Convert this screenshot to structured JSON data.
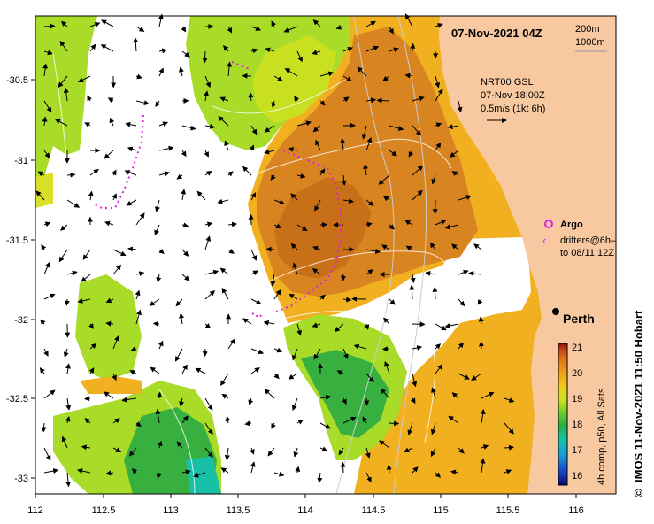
{
  "header": {
    "datetime": "07-Nov-2021 04Z",
    "depth_200": "200m",
    "depth_1000": "1000m"
  },
  "currents_note": {
    "line1": "NRT00 GSL",
    "line2": "07-Nov 18:00Z",
    "line3": "0.5m/s (1kt 6h)"
  },
  "legend": {
    "argo": "Argo",
    "drifters_line1": "drifters@6h–",
    "drifters_line2": "to 08/11 12Z"
  },
  "city": {
    "name": "Perth",
    "lon": 115.86,
    "lat": -31.95
  },
  "axes": {
    "x_ticks": [
      "112",
      "112.5",
      "113",
      "113.5",
      "114",
      "114.5",
      "115",
      "115.5",
      "116"
    ],
    "y_ticks": [
      "-30.5",
      "-31",
      "-31.5",
      "-32",
      "-32.5",
      "-33"
    ],
    "xlim": [
      112,
      116.3
    ],
    "ylim": [
      -33.1,
      -30.1
    ]
  },
  "colorbar": {
    "ticks": [
      "21",
      "20",
      "19",
      "18",
      "17",
      "16"
    ],
    "range": [
      15.5,
      21
    ],
    "label": "4h comp, p50, All Sats",
    "colors": [
      "#0a0a6e",
      "#1848c8",
      "#1aa0d8",
      "#18c0a8",
      "#28b048",
      "#78d028",
      "#c8e020",
      "#f0d020",
      "#f0a818",
      "#e07818",
      "#c84818",
      "#8c1010"
    ]
  },
  "credit": "IMOS 11-Nov-2021 11:50 Hobart",
  "copyright_symbol": "©",
  "colors": {
    "land": "#f8c8a0",
    "warm": "#d88420",
    "mid": "#f0b020",
    "cool": "#a8dc28",
    "cold": "#38b040",
    "coldest": "#18c0a8",
    "argo_marker": "#e020e0"
  }
}
